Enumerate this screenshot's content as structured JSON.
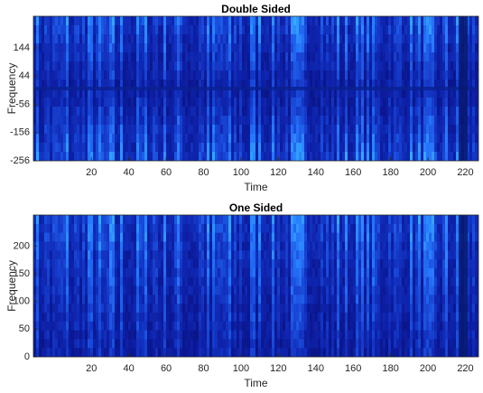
{
  "chart_data": [
    {
      "type": "spectrogram",
      "title": "Double Sided",
      "x_label": "Time",
      "y_label": "Frequency",
      "xlim": [
        -11,
        227
      ],
      "xticks": [
        20,
        40,
        60,
        80,
        100,
        120,
        140,
        160,
        180,
        200,
        220
      ],
      "ylim": [
        -256,
        256
      ],
      "yticks": [
        -256,
        -156,
        -56,
        44,
        144
      ],
      "symmetric": true
    },
    {
      "type": "spectrogram",
      "title": "One Sided",
      "x_label": "Time",
      "y_label": "Frequency",
      "xlim": [
        -11,
        227
      ],
      "xticks": [
        20,
        40,
        60,
        80,
        100,
        120,
        140,
        160,
        180,
        200,
        220
      ],
      "ylim": [
        0,
        256
      ],
      "yticks": [
        0,
        50,
        100,
        150,
        200
      ],
      "symmetric": false
    }
  ]
}
